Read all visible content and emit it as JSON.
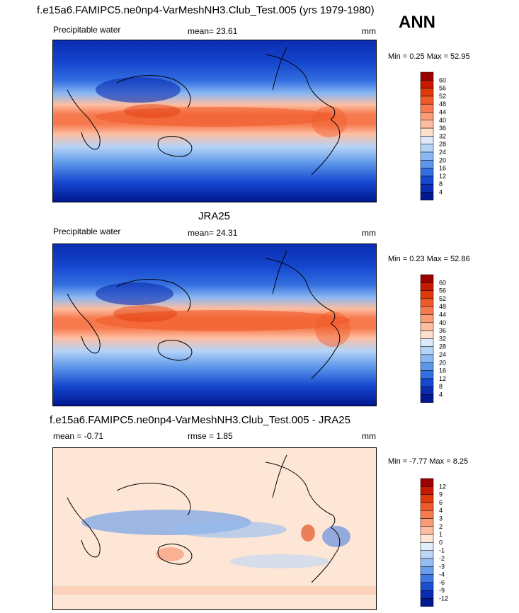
{
  "season": "ANN",
  "panels": [
    {
      "id": "model",
      "title": "f.e15a6.FAMIPC5.ne0np4-VarMeshNH3.Club_Test.005 (yrs 1979-1980)",
      "left_label": "Precipitable water",
      "center_label": "mean=  23.61",
      "units": "mm",
      "minmax": "Min =   0.25 Max =  52.95",
      "colorbar": {
        "labels": [
          "60",
          "56",
          "52",
          "48",
          "44",
          "40",
          "36",
          "32",
          "28",
          "24",
          "20",
          "16",
          "12",
          "8",
          "4"
        ],
        "colors": [
          "#9a0000",
          "#c81800",
          "#e03a0a",
          "#f05a2a",
          "#f77a4f",
          "#fb9c77",
          "#fdbda0",
          "#fde0cc",
          "#dbe9fb",
          "#b5d3f7",
          "#8bb8f2",
          "#5d97ea",
          "#336fe0",
          "#1547cf",
          "#0a2cb0",
          "#001890"
        ]
      }
    },
    {
      "id": "obs",
      "title": "JRA25",
      "left_label": "Precipitable water",
      "center_label": "mean=  24.31",
      "units": "mm",
      "minmax": "Min =   0.23 Max =  52.86",
      "colorbar": {
        "labels": [
          "60",
          "56",
          "52",
          "48",
          "44",
          "40",
          "36",
          "32",
          "28",
          "24",
          "20",
          "16",
          "12",
          "8",
          "4"
        ],
        "colors": [
          "#9a0000",
          "#c81800",
          "#e03a0a",
          "#f05a2a",
          "#f77a4f",
          "#fb9c77",
          "#fdbda0",
          "#fde0cc",
          "#dbe9fb",
          "#b5d3f7",
          "#8bb8f2",
          "#5d97ea",
          "#336fe0",
          "#1547cf",
          "#0a2cb0",
          "#001890"
        ]
      }
    },
    {
      "id": "diff",
      "title": "f.e15a6.FAMIPC5.ne0np4-VarMeshNH3.Club_Test.005 - JRA25",
      "left_label": "mean =  -0.71",
      "center_label": "rmse =   1.85",
      "units": "mm",
      "minmax": "Min =  -7.77 Max =   8.25",
      "colorbar": {
        "labels": [
          "12",
          "9",
          "6",
          "4",
          "3",
          "2",
          "1",
          "0",
          "-1",
          "-2",
          "-3",
          "-4",
          "-6",
          "-9",
          "-12"
        ],
        "colors": [
          "#9a0000",
          "#c81800",
          "#e03a0a",
          "#f05a2a",
          "#f77a4f",
          "#fb9c77",
          "#fdbda0",
          "#fde6d6",
          "#e3eefc",
          "#bcd6f7",
          "#94bdf2",
          "#6a9deb",
          "#3f78e2",
          "#1a4fd1",
          "#0a2cb0",
          "#001890"
        ]
      }
    }
  ]
}
